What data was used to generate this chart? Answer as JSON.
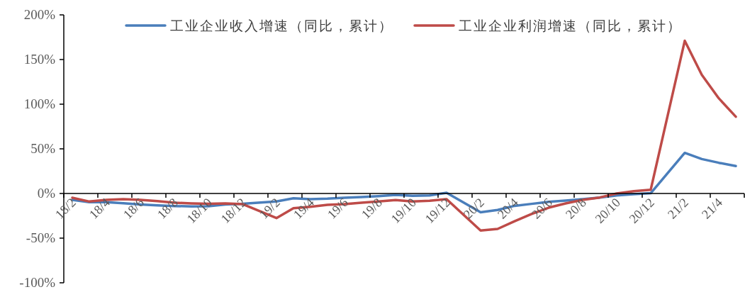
{
  "chart_data": {
    "type": "line",
    "categories": [
      "18/2",
      null,
      "18/4",
      null,
      "18/6",
      null,
      "18/8",
      null,
      "18/10",
      null,
      "18/12",
      null,
      "19/2",
      null,
      "19/4",
      null,
      "19/6",
      null,
      "19/8",
      null,
      "19/10",
      null,
      "19/12",
      null,
      "20/2",
      null,
      "20/4",
      null,
      "20/6",
      null,
      "20/8",
      null,
      "20/10",
      null,
      "20/12",
      null,
      "21/2",
      null,
      "21/4",
      null
    ],
    "series": [
      {
        "name": "工业企业收入增速（同比，累计）",
        "color": "#4a7ebb",
        "values": [
          -7.1,
          -9.8,
          -9.8,
          -11,
          -12.4,
          -13.2,
          -14,
          -14.5,
          -14.3,
          -12.4,
          -11.6,
          null,
          -9,
          -5.3,
          -6.3,
          -5.8,
          -4.8,
          -4,
          -2.9,
          -1.6,
          -2.6,
          -2.1,
          0.8,
          null,
          -21,
          -18.5,
          -13.8,
          -11.6,
          -9.3,
          -7.9,
          -6.3,
          -4.5,
          -2.1,
          -0.8,
          0.3,
          null,
          45.5,
          38.6,
          34.4,
          30.7
        ]
      },
      {
        "name": "工业企业利润增速（同比，累计）",
        "color": "#be4b48",
        "values": [
          -4.8,
          -9,
          -7.1,
          -6.3,
          -7.1,
          -8.5,
          -10.3,
          -11.1,
          -11.6,
          -11.1,
          -11.9,
          null,
          -27.5,
          -16.4,
          -14.8,
          -12.7,
          -11.9,
          -10.3,
          -9,
          -7.4,
          -9,
          -8.2,
          -6.3,
          null,
          -41.5,
          -39.7,
          -31,
          -23,
          -15.9,
          -11.1,
          -7.1,
          -4.5,
          0,
          2.6,
          4.2,
          null,
          171,
          133,
          106.6,
          86
        ]
      }
    ],
    "ylim": [
      -100,
      200
    ],
    "yticks": [
      {
        "value": -100,
        "label": "-100%"
      },
      {
        "value": -50,
        "label": "-50%"
      },
      {
        "value": 0,
        "label": "0%"
      },
      {
        "value": 50,
        "label": "50%"
      },
      {
        "value": 100,
        "label": "100%"
      },
      {
        "value": 150,
        "label": "150%"
      },
      {
        "value": 200,
        "label": "200%"
      }
    ],
    "legend": "top"
  }
}
